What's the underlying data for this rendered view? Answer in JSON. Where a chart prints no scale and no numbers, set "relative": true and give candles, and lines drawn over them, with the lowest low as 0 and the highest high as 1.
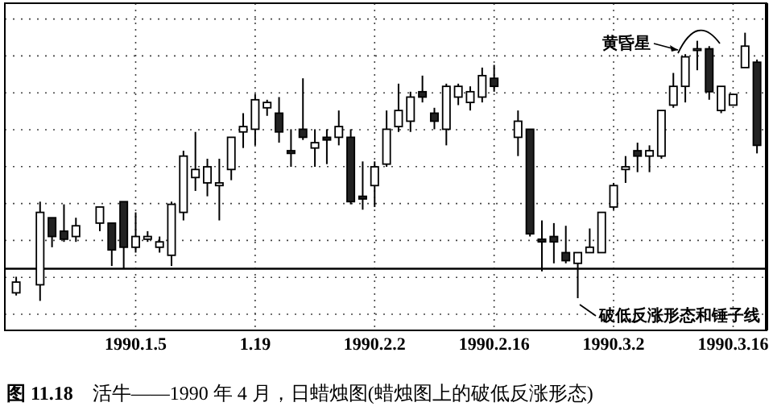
{
  "chart_data": {
    "type": "candlestick",
    "title": "**图 11.18**　活牛——1990 年 4 月，日蜡烛图(蜡烛图上的破低反涨形态)",
    "relative": true,
    "grid": true,
    "categories": [
      null,
      null,
      null,
      null,
      null,
      null,
      null,
      null,
      null,
      null,
      "1990.1.5",
      null,
      null,
      null,
      null,
      null,
      null,
      null,
      null,
      null,
      "1.19",
      null,
      null,
      null,
      null,
      null,
      null,
      null,
      null,
      null,
      "1990.2.2",
      null,
      null,
      null,
      null,
      null,
      null,
      null,
      null,
      null,
      "1990.2.16",
      null,
      null,
      null,
      null,
      null,
      null,
      null,
      null,
      null,
      "1990.3.2",
      null,
      null,
      null,
      null,
      null,
      null,
      null,
      null,
      null,
      "1990.3.16",
      null,
      null
    ],
    "ohlc": [
      [
        0.03,
        0.09,
        0.02,
        0.07
      ],
      null,
      [
        0.06,
        0.37,
        0.0,
        0.33
      ],
      [
        0.31,
        0.31,
        0.2,
        0.24
      ],
      [
        0.26,
        0.36,
        0.22,
        0.23
      ],
      [
        0.24,
        0.31,
        0.22,
        0.28
      ],
      null,
      [
        0.29,
        0.35,
        0.26,
        0.35
      ],
      [
        0.29,
        0.29,
        0.13,
        0.19
      ],
      [
        0.37,
        0.37,
        0.12,
        0.2
      ],
      [
        0.2,
        0.33,
        0.18,
        0.24
      ],
      [
        0.23,
        0.26,
        0.22,
        0.24
      ],
      [
        0.2,
        0.24,
        0.18,
        0.22
      ],
      [
        0.17,
        0.37,
        0.13,
        0.36
      ],
      [
        0.33,
        0.56,
        0.3,
        0.54
      ],
      [
        0.46,
        0.63,
        0.41,
        0.49
      ],
      [
        0.44,
        0.53,
        0.39,
        0.5
      ],
      [
        0.43,
        0.53,
        0.3,
        0.44
      ],
      [
        0.49,
        0.61,
        0.45,
        0.61
      ],
      [
        0.63,
        0.7,
        0.57,
        0.65
      ],
      [
        0.64,
        0.77,
        0.58,
        0.75
      ],
      [
        0.72,
        0.75,
        0.69,
        0.74
      ],
      [
        0.7,
        0.76,
        0.59,
        0.63
      ],
      [
        0.56,
        0.64,
        0.5,
        0.55
      ],
      [
        0.64,
        0.83,
        0.6,
        0.61
      ],
      [
        0.57,
        0.64,
        0.5,
        0.59
      ],
      [
        0.61,
        0.64,
        0.51,
        0.6
      ],
      [
        0.61,
        0.71,
        0.58,
        0.65
      ],
      [
        0.61,
        0.64,
        0.36,
        0.37
      ],
      [
        0.39,
        0.52,
        0.34,
        0.38
      ],
      [
        0.43,
        0.52,
        0.35,
        0.5
      ],
      [
        0.51,
        0.71,
        0.5,
        0.64
      ],
      [
        0.65,
        0.81,
        0.63,
        0.71
      ],
      [
        0.67,
        0.78,
        0.63,
        0.76
      ],
      [
        0.78,
        0.84,
        0.74,
        0.76
      ],
      [
        0.7,
        0.72,
        0.64,
        0.67
      ],
      [
        0.64,
        0.81,
        0.58,
        0.8
      ],
      [
        0.76,
        0.81,
        0.73,
        0.8
      ],
      [
        0.74,
        0.8,
        0.71,
        0.78
      ],
      [
        0.76,
        0.87,
        0.74,
        0.84
      ],
      [
        0.83,
        0.88,
        0.78,
        0.8
      ],
      null,
      [
        0.61,
        0.71,
        0.54,
        0.67
      ],
      [
        0.64,
        0.64,
        0.24,
        0.25
      ],
      [
        0.23,
        0.3,
        0.11,
        0.22
      ],
      [
        0.24,
        0.29,
        0.14,
        0.22
      ],
      [
        0.18,
        0.28,
        0.14,
        0.15
      ],
      [
        0.14,
        0.18,
        0.01,
        0.18
      ],
      [
        0.18,
        0.27,
        0.18,
        0.2
      ],
      [
        0.18,
        0.33,
        0.18,
        0.33
      ],
      [
        0.35,
        0.44,
        0.34,
        0.43
      ],
      [
        0.49,
        0.54,
        0.44,
        0.5
      ],
      [
        0.56,
        0.59,
        0.48,
        0.54
      ],
      [
        0.54,
        0.58,
        0.48,
        0.56
      ],
      [
        0.54,
        0.71,
        0.53,
        0.71
      ],
      [
        0.73,
        0.85,
        0.72,
        0.8
      ],
      [
        0.8,
        0.92,
        0.74,
        0.91
      ],
      [
        0.94,
        0.97,
        0.86,
        0.94
      ],
      [
        0.94,
        0.95,
        0.75,
        0.78
      ],
      [
        0.71,
        0.8,
        0.7,
        0.8
      ],
      [
        0.73,
        0.77,
        0.73,
        0.77
      ],
      [
        0.87,
        1.0,
        0.87,
        0.95
      ],
      [
        0.89,
        0.9,
        0.55,
        0.58
      ]
    ],
    "ref_lines": [
      {
        "axis": "y",
        "value": 0.12,
        "color": "#000000",
        "line_style": "solid"
      }
    ],
    "annotations": [
      "黄昏星",
      "破低反涨形态和锤子线"
    ]
  }
}
